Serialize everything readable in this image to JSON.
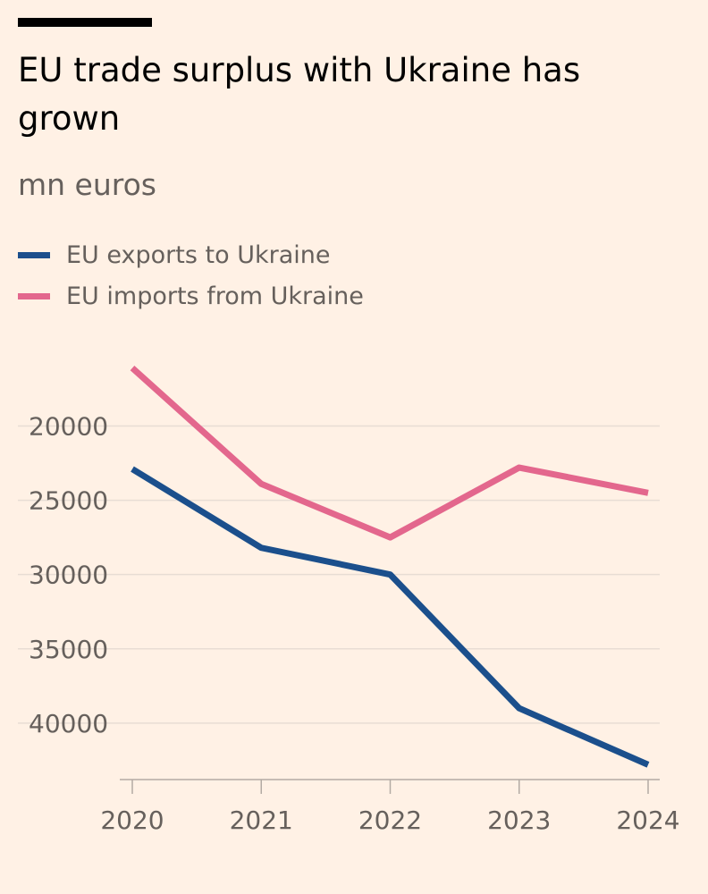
{
  "header": {
    "title": "EU trade surplus with Ukraine has grown",
    "subtitle": "mn euros"
  },
  "colors": {
    "background": "#FFF1E5",
    "exports": "#1B4F8C",
    "imports": "#E3678D",
    "grid": "#E8DDD4",
    "axis": "#B3ABA4"
  },
  "legend": {
    "items": [
      {
        "label": "EU exports to Ukraine",
        "color": "#1B4F8C"
      },
      {
        "label": "EU imports from Ukraine",
        "color": "#E3678D"
      }
    ]
  },
  "chart_data": {
    "type": "line",
    "title": "EU trade surplus with Ukraine has grown",
    "ylabel": "mn euros",
    "xlabel": "",
    "y_inverted": true,
    "ylim": [
      16000,
      43800
    ],
    "yticks": [
      20000,
      25000,
      30000,
      35000,
      40000
    ],
    "ytick_labels": [
      "20000",
      "25000",
      "30000",
      "35000",
      "40000"
    ],
    "categories": [
      "2020",
      "2021",
      "2022",
      "2023",
      "2024"
    ],
    "grid": true,
    "legend_position": "top-left",
    "series": [
      {
        "name": "EU exports to Ukraine",
        "color": "#1B4F8C",
        "values": [
          22900,
          28200,
          30000,
          39000,
          42800
        ]
      },
      {
        "name": "EU imports from Ukraine",
        "color": "#E3678D",
        "values": [
          16100,
          23900,
          27500,
          22800,
          24500
        ]
      }
    ]
  }
}
